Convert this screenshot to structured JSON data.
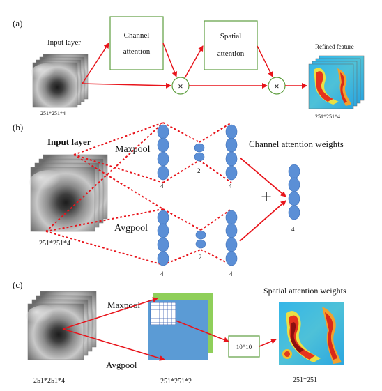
{
  "panel_a": {
    "label": "(a)",
    "input_label": "Input layer",
    "input_dims": "251*251*4",
    "channel_box_line1": "Channel",
    "channel_box_line2": "attention",
    "spatial_box_line1": "Spatial",
    "spatial_box_line2": "attention",
    "output_label": "Refined feature",
    "output_dims": "251*251*4",
    "multiply_symbol": "×"
  },
  "panel_b": {
    "label": "(b)",
    "input_label": "Input layer",
    "input_dims": "251*251*4",
    "maxpool_label": "Maxpool",
    "avgpool_label": "Avgpool",
    "weights_label": "Channel attention weights",
    "plus_symbol": "+",
    "count_4": "4",
    "count_2": "2"
  },
  "panel_c": {
    "label": "(c)",
    "input_dims": "251*251*4",
    "maxpool_label": "Maxpool",
    "avgpool_label": "Avgpool",
    "concat_dims": "251*251*2",
    "conv_label": "10*10",
    "weights_label": "Spatial attention weights",
    "output_dims": "251*251"
  },
  "colors": {
    "arrow_red": "#e8141b",
    "box_green": "#5e9e3f",
    "node_blue": "#5b8fd6",
    "map_blue": "#5b9bd5",
    "map_green": "#8fcf5a"
  }
}
